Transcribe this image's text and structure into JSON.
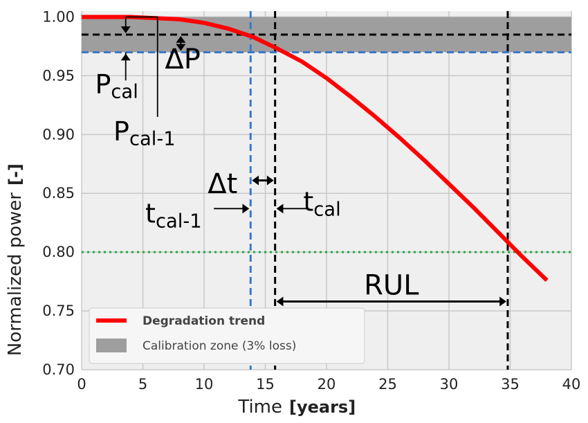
{
  "chart_data": {
    "type": "line",
    "xlabel": "Time",
    "xlabel_unit": "[years]",
    "ylabel": "Normalized power",
    "ylabel_unit": "[-]",
    "xlim": [
      0,
      40
    ],
    "ylim": [
      0.7,
      1.005
    ],
    "x_ticks": [
      0,
      5,
      10,
      15,
      20,
      25,
      30,
      35,
      40
    ],
    "y_ticks": [
      0.7,
      0.75,
      0.8,
      0.85,
      0.9,
      0.95,
      1.0
    ],
    "grid": true,
    "legend_position": "bottom-left",
    "series": [
      {
        "name": "Degradation trend",
        "color": "#ff0000",
        "x": [
          0,
          2,
          4,
          6,
          8,
          10,
          12,
          14,
          16,
          18,
          20,
          22,
          24,
          26,
          28,
          30,
          32,
          34,
          36,
          38
        ],
        "y": [
          1.0,
          1.0,
          1.0,
          0.999,
          0.998,
          0.995,
          0.99,
          0.983,
          0.973,
          0.962,
          0.948,
          0.932,
          0.915,
          0.897,
          0.878,
          0.858,
          0.838,
          0.817,
          0.796,
          0.776
        ]
      }
    ],
    "bands": [
      {
        "name": "Calibration zone (3% loss)",
        "color": "#9e9e9e",
        "y_from": 0.97,
        "y_to": 1.0
      }
    ],
    "hlines": [
      {
        "y": 0.985,
        "color": "#000000",
        "style": "dashed"
      },
      {
        "y": 0.97,
        "color": "#3a78c9",
        "style": "dashed"
      },
      {
        "y": 0.8,
        "color": "#22aa44",
        "style": "dotted"
      }
    ],
    "vlines": [
      {
        "x": 13.8,
        "color": "#3a78c9",
        "style": "dashed"
      },
      {
        "x": 15.8,
        "color": "#000000",
        "style": "dashed"
      },
      {
        "x": 34.8,
        "color": "#000000",
        "style": "dashed"
      }
    ],
    "annotations": {
      "delta_p": "ΔP",
      "p_cal": {
        "main": "P",
        "sub": "cal"
      },
      "p_cal_1": {
        "main": "P",
        "sub": "cal-1"
      },
      "delta_t": "Δt",
      "t_cal_1": {
        "main": "t",
        "sub": "cal-1"
      },
      "t_cal": {
        "main": "t",
        "sub": "cal"
      },
      "rul": "RUL"
    }
  }
}
